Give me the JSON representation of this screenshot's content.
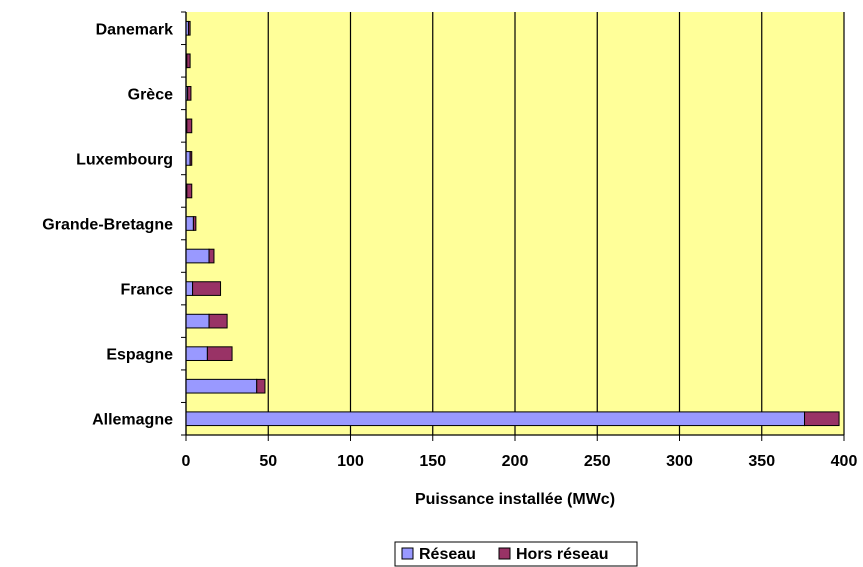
{
  "chart_data": {
    "type": "bar",
    "orientation": "horizontal",
    "stacked": true,
    "categories": [
      "Danemark",
      "",
      "Grèce",
      "",
      "Luxembourg",
      "",
      "Grande-Bretagne",
      "",
      "France",
      "",
      "Espagne",
      "",
      "Allemagne"
    ],
    "series": [
      {
        "name": "Réseau",
        "color": "#9999ff",
        "values": [
          1.5,
          0.5,
          1,
          0.5,
          2.5,
          0.5,
          4.5,
          14,
          4,
          14,
          13,
          43,
          376
        ]
      },
      {
        "name": "Hors réseau",
        "color": "#993366",
        "values": [
          1,
          2,
          2,
          3,
          1,
          3,
          1.5,
          3,
          17,
          11,
          15,
          5,
          21
        ]
      }
    ],
    "xlabel": "Puissance installée (MWc)",
    "ylabel": "",
    "xlim": [
      0,
      400
    ],
    "xticks": [
      0,
      50,
      100,
      150,
      200,
      250,
      300,
      350,
      400
    ],
    "grid": "vertical",
    "plot_background": "#ffff99",
    "legend_position": "bottom"
  }
}
